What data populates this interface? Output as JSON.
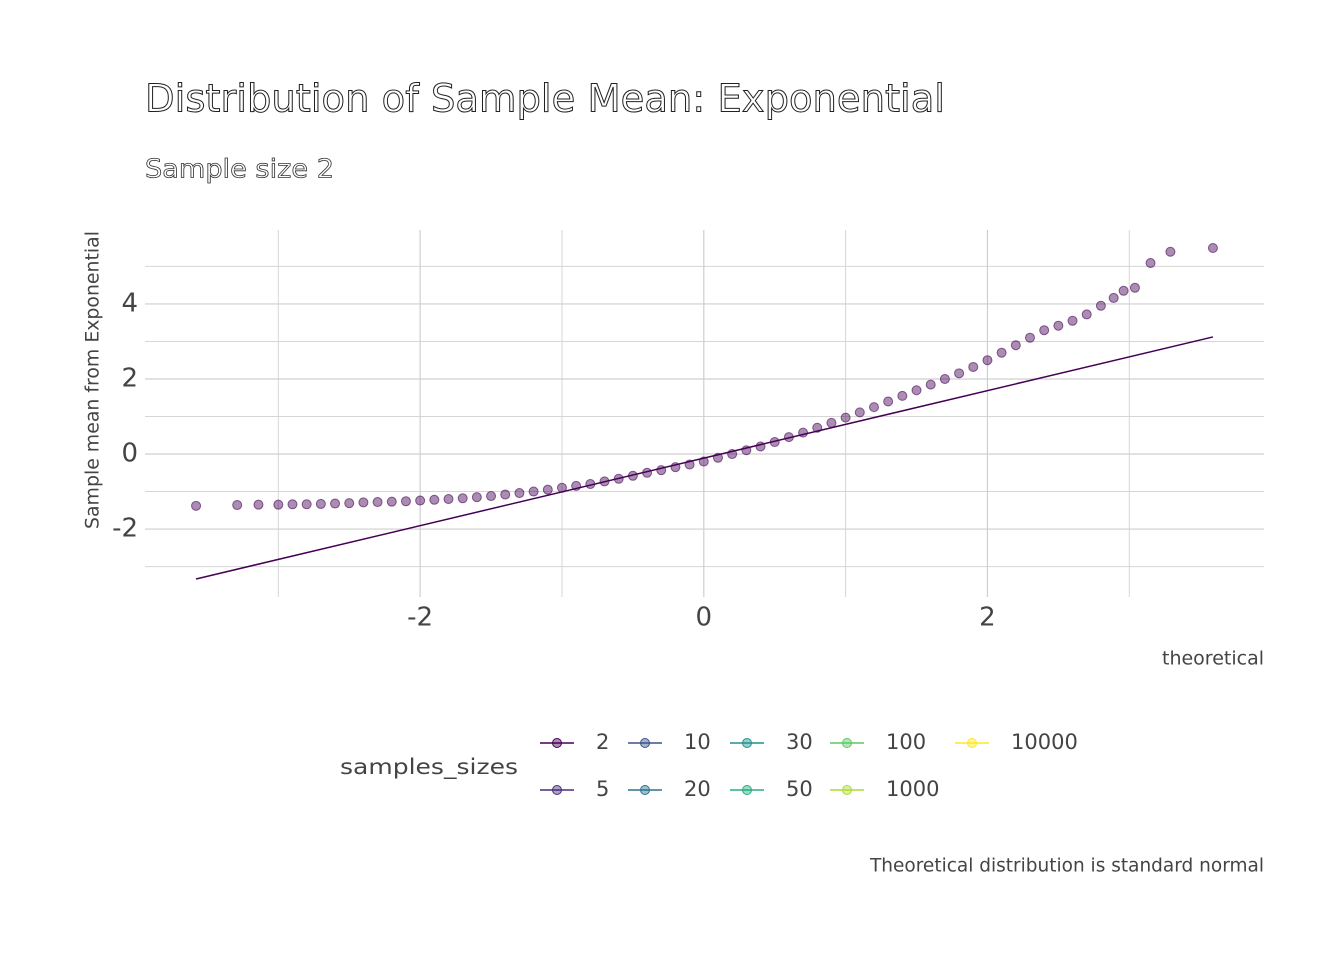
{
  "chart_data": {
    "type": "scatter",
    "title": "Distribution of Sample Mean: Exponential",
    "subtitle": "Sample size 2",
    "x_label": "theoretical",
    "y_label": "Sample mean from Exponential",
    "caption": "Theoretical distribution is standard normal",
    "legend_title": "samples_sizes",
    "legend_position": "bottom",
    "grid": true,
    "xlim": [
      -3.94,
      3.95
    ],
    "ylim": [
      -3.81,
      5.97
    ],
    "xticks": [
      -2,
      0,
      2
    ],
    "yticks": [
      -2,
      0,
      2,
      4
    ],
    "x_minor_ticks": [
      -3,
      -1,
      1,
      3
    ],
    "y_minor_ticks": [
      -3,
      -1,
      1,
      3,
      5
    ],
    "reference_line": {
      "color": "#440154",
      "x": [
        -3.58,
        3.59
      ],
      "y": [
        -3.33,
        3.12
      ]
    },
    "series": [
      {
        "name": "2",
        "color": "#440154",
        "x": [
          -3.58,
          -3.29,
          -3.14,
          -3.0,
          -2.9,
          -2.8,
          -2.7,
          -2.6,
          -2.5,
          -2.4,
          -2.3,
          -2.2,
          -2.1,
          -2.0,
          -1.9,
          -1.8,
          -1.7,
          -1.6,
          -1.5,
          -1.4,
          -1.3,
          -1.2,
          -1.1,
          -1.0,
          -0.9,
          -0.8,
          -0.7,
          -0.6,
          -0.5,
          -0.4,
          -0.3,
          -0.2,
          -0.1,
          0,
          0.1,
          0.2,
          0.3,
          0.4,
          0.5,
          0.6,
          0.7,
          0.8,
          0.9,
          1.0,
          1.1,
          1.2,
          1.3,
          1.4,
          1.5,
          1.6,
          1.7,
          1.8,
          1.9,
          2.0,
          2.1,
          2.2,
          2.3,
          2.4,
          2.5,
          2.6,
          2.7,
          2.8,
          2.89,
          2.96,
          3.04,
          3.15,
          3.29,
          3.59
        ],
        "y": [
          -1.38,
          -1.36,
          -1.35,
          -1.35,
          -1.34,
          -1.34,
          -1.33,
          -1.32,
          -1.31,
          -1.29,
          -1.28,
          -1.27,
          -1.26,
          -1.24,
          -1.22,
          -1.2,
          -1.18,
          -1.15,
          -1.12,
          -1.08,
          -1.04,
          -1.0,
          -0.95,
          -0.9,
          -0.85,
          -0.8,
          -0.73,
          -0.66,
          -0.58,
          -0.5,
          -0.43,
          -0.35,
          -0.28,
          -0.2,
          -0.1,
          0.0,
          0.1,
          0.2,
          0.32,
          0.45,
          0.57,
          0.7,
          0.83,
          0.97,
          1.11,
          1.25,
          1.4,
          1.55,
          1.7,
          1.85,
          2.0,
          2.15,
          2.32,
          2.5,
          2.7,
          2.9,
          3.1,
          3.3,
          3.42,
          3.55,
          3.72,
          3.95,
          4.16,
          4.35,
          4.43,
          5.09,
          5.39,
          5.49
        ]
      },
      {
        "name": "5",
        "color": "#472D7B",
        "x": [],
        "y": []
      },
      {
        "name": "10",
        "color": "#3B528B",
        "x": [],
        "y": []
      },
      {
        "name": "20",
        "color": "#2C728E",
        "x": [],
        "y": []
      },
      {
        "name": "30",
        "color": "#21908C",
        "x": [],
        "y": []
      },
      {
        "name": "50",
        "color": "#27AD81",
        "x": [],
        "y": []
      },
      {
        "name": "100",
        "color": "#5DC863",
        "x": [],
        "y": []
      },
      {
        "name": "1000",
        "color": "#AADC32",
        "x": [],
        "y": []
      },
      {
        "name": "10000",
        "color": "#FDE725",
        "x": [],
        "y": []
      }
    ]
  }
}
